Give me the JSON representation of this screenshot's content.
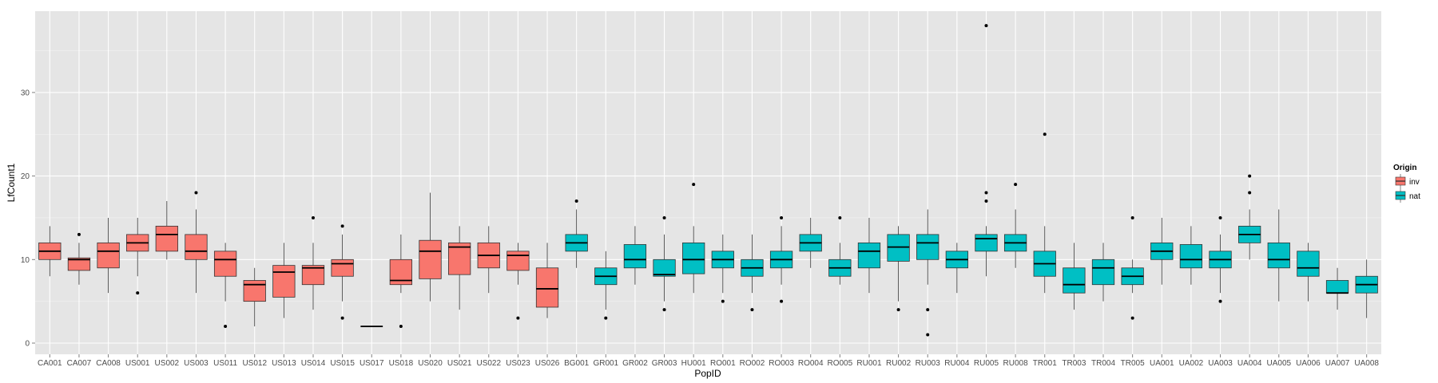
{
  "chart_data": {
    "type": "box",
    "xlabel": "PopID",
    "ylabel": "LfCount1",
    "ylim": [
      0,
      40
    ],
    "yticks": [
      0,
      10,
      20,
      30
    ],
    "grid": true,
    "legend": {
      "title": "Origin",
      "placement": "right",
      "entries": [
        {
          "key": "inv",
          "label": "inv",
          "color": "#F8766D"
        },
        {
          "key": "nat",
          "label": "nat",
          "color": "#00BFC4"
        }
      ]
    },
    "boxes": [
      {
        "category": "CA001",
        "origin": "inv",
        "q1": 10,
        "median": 11,
        "q3": 12,
        "lower_whisker": 8,
        "upper_whisker": 14,
        "outliers": []
      },
      {
        "category": "CA007",
        "origin": "inv",
        "q1": 8.7,
        "median": 10,
        "q3": 10.2,
        "lower_whisker": 7,
        "upper_whisker": 12,
        "outliers": [
          13
        ]
      },
      {
        "category": "CA008",
        "origin": "inv",
        "q1": 9,
        "median": 11,
        "q3": 12,
        "lower_whisker": 6,
        "upper_whisker": 15,
        "outliers": []
      },
      {
        "category": "US001",
        "origin": "inv",
        "q1": 11,
        "median": 12,
        "q3": 13,
        "lower_whisker": 8,
        "upper_whisker": 15,
        "outliers": [
          6
        ]
      },
      {
        "category": "US002",
        "origin": "inv",
        "q1": 11,
        "median": 13,
        "q3": 14,
        "lower_whisker": 10,
        "upper_whisker": 17,
        "outliers": []
      },
      {
        "category": "US003",
        "origin": "inv",
        "q1": 10,
        "median": 11,
        "q3": 13,
        "lower_whisker": 6,
        "upper_whisker": 16,
        "outliers": [
          18
        ]
      },
      {
        "category": "US011",
        "origin": "inv",
        "q1": 8,
        "median": 10,
        "q3": 11,
        "lower_whisker": 5,
        "upper_whisker": 12,
        "outliers": [
          2
        ]
      },
      {
        "category": "US012",
        "origin": "inv",
        "q1": 5,
        "median": 7,
        "q3": 7.5,
        "lower_whisker": 2,
        "upper_whisker": 9,
        "outliers": []
      },
      {
        "category": "US013",
        "origin": "inv",
        "q1": 5.5,
        "median": 8.5,
        "q3": 9.3,
        "lower_whisker": 3,
        "upper_whisker": 12,
        "outliers": []
      },
      {
        "category": "US014",
        "origin": "inv",
        "q1": 7,
        "median": 9,
        "q3": 9.3,
        "lower_whisker": 4,
        "upper_whisker": 12,
        "outliers": [
          15
        ]
      },
      {
        "category": "US015",
        "origin": "inv",
        "q1": 8,
        "median": 9.5,
        "q3": 10,
        "lower_whisker": 5,
        "upper_whisker": 13,
        "outliers": [
          3,
          14
        ]
      },
      {
        "category": "US017",
        "origin": "inv",
        "q1": 2,
        "median": 2,
        "q3": 2,
        "lower_whisker": 2,
        "upper_whisker": 2,
        "outliers": []
      },
      {
        "category": "US018",
        "origin": "inv",
        "q1": 7,
        "median": 7.5,
        "q3": 10,
        "lower_whisker": 6,
        "upper_whisker": 13,
        "outliers": [
          2
        ]
      },
      {
        "category": "US020",
        "origin": "inv",
        "q1": 7.7,
        "median": 11,
        "q3": 12.3,
        "lower_whisker": 5,
        "upper_whisker": 18,
        "outliers": []
      },
      {
        "category": "US021",
        "origin": "inv",
        "q1": 8.2,
        "median": 11.5,
        "q3": 12,
        "lower_whisker": 4,
        "upper_whisker": 14,
        "outliers": []
      },
      {
        "category": "US022",
        "origin": "inv",
        "q1": 9,
        "median": 10.5,
        "q3": 12,
        "lower_whisker": 6,
        "upper_whisker": 14,
        "outliers": []
      },
      {
        "category": "US023",
        "origin": "inv",
        "q1": 8.7,
        "median": 10.5,
        "q3": 11,
        "lower_whisker": 7,
        "upper_whisker": 12,
        "outliers": [
          3
        ]
      },
      {
        "category": "US026",
        "origin": "inv",
        "q1": 4.3,
        "median": 6.5,
        "q3": 9,
        "lower_whisker": 3,
        "upper_whisker": 12,
        "outliers": []
      },
      {
        "category": "BG001",
        "origin": "nat",
        "q1": 11,
        "median": 12,
        "q3": 13,
        "lower_whisker": 9,
        "upper_whisker": 16,
        "outliers": [
          17
        ]
      },
      {
        "category": "GR001",
        "origin": "nat",
        "q1": 7,
        "median": 8,
        "q3": 9,
        "lower_whisker": 4,
        "upper_whisker": 11,
        "outliers": [
          3
        ]
      },
      {
        "category": "GR002",
        "origin": "nat",
        "q1": 9,
        "median": 10,
        "q3": 11.8,
        "lower_whisker": 7,
        "upper_whisker": 14,
        "outliers": []
      },
      {
        "category": "GR003",
        "origin": "nat",
        "q1": 8,
        "median": 8.2,
        "q3": 10,
        "lower_whisker": 5,
        "upper_whisker": 13,
        "outliers": [
          4,
          15
        ]
      },
      {
        "category": "HU001",
        "origin": "nat",
        "q1": 8.3,
        "median": 10,
        "q3": 12,
        "lower_whisker": 6,
        "upper_whisker": 14,
        "outliers": [
          19
        ]
      },
      {
        "category": "RO001",
        "origin": "nat",
        "q1": 9,
        "median": 10,
        "q3": 11,
        "lower_whisker": 6,
        "upper_whisker": 13,
        "outliers": [
          5
        ]
      },
      {
        "category": "RO002",
        "origin": "nat",
        "q1": 8,
        "median": 9,
        "q3": 10,
        "lower_whisker": 6,
        "upper_whisker": 13,
        "outliers": [
          4
        ]
      },
      {
        "category": "RO003",
        "origin": "nat",
        "q1": 9,
        "median": 10,
        "q3": 11,
        "lower_whisker": 7,
        "upper_whisker": 14,
        "outliers": [
          5,
          15
        ]
      },
      {
        "category": "RO004",
        "origin": "nat",
        "q1": 11,
        "median": 12,
        "q3": 13,
        "lower_whisker": 9,
        "upper_whisker": 15,
        "outliers": []
      },
      {
        "category": "RO005",
        "origin": "nat",
        "q1": 8,
        "median": 9,
        "q3": 10,
        "lower_whisker": 7,
        "upper_whisker": 12,
        "outliers": [
          15
        ]
      },
      {
        "category": "RU001",
        "origin": "nat",
        "q1": 9,
        "median": 11,
        "q3": 12,
        "lower_whisker": 6,
        "upper_whisker": 15,
        "outliers": []
      },
      {
        "category": "RU002",
        "origin": "nat",
        "q1": 9.8,
        "median": 11.5,
        "q3": 13,
        "lower_whisker": 5,
        "upper_whisker": 14,
        "outliers": [
          4
        ]
      },
      {
        "category": "RU003",
        "origin": "nat",
        "q1": 10,
        "median": 12,
        "q3": 13,
        "lower_whisker": 7,
        "upper_whisker": 16,
        "outliers": [
          1,
          4
        ]
      },
      {
        "category": "RU004",
        "origin": "nat",
        "q1": 9,
        "median": 10,
        "q3": 11,
        "lower_whisker": 6,
        "upper_whisker": 12,
        "outliers": []
      },
      {
        "category": "RU005",
        "origin": "nat",
        "q1": 11,
        "median": 12.5,
        "q3": 13,
        "lower_whisker": 8,
        "upper_whisker": 14,
        "outliers": [
          17,
          18,
          38
        ]
      },
      {
        "category": "RU008",
        "origin": "nat",
        "q1": 11,
        "median": 12,
        "q3": 13,
        "lower_whisker": 9,
        "upper_whisker": 16,
        "outliers": [
          19
        ]
      },
      {
        "category": "TR001",
        "origin": "nat",
        "q1": 8,
        "median": 9.5,
        "q3": 11,
        "lower_whisker": 6,
        "upper_whisker": 14,
        "outliers": [
          25
        ]
      },
      {
        "category": "TR003",
        "origin": "nat",
        "q1": 6,
        "median": 7,
        "q3": 9,
        "lower_whisker": 4,
        "upper_whisker": 12,
        "outliers": []
      },
      {
        "category": "TR004",
        "origin": "nat",
        "q1": 7,
        "median": 9,
        "q3": 10,
        "lower_whisker": 5,
        "upper_whisker": 12,
        "outliers": []
      },
      {
        "category": "TR005",
        "origin": "nat",
        "q1": 7,
        "median": 8,
        "q3": 9,
        "lower_whisker": 6,
        "upper_whisker": 10,
        "outliers": [
          3,
          15
        ]
      },
      {
        "category": "UA001",
        "origin": "nat",
        "q1": 10,
        "median": 11,
        "q3": 12,
        "lower_whisker": 7,
        "upper_whisker": 15,
        "outliers": []
      },
      {
        "category": "UA002",
        "origin": "nat",
        "q1": 9,
        "median": 10,
        "q3": 11.8,
        "lower_whisker": 7,
        "upper_whisker": 14,
        "outliers": []
      },
      {
        "category": "UA003",
        "origin": "nat",
        "q1": 9,
        "median": 10,
        "q3": 11,
        "lower_whisker": 6,
        "upper_whisker": 13,
        "outliers": [
          5,
          15
        ]
      },
      {
        "category": "UA004",
        "origin": "nat",
        "q1": 12,
        "median": 13,
        "q3": 14,
        "lower_whisker": 10,
        "upper_whisker": 16,
        "outliers": [
          18,
          20
        ]
      },
      {
        "category": "UA005",
        "origin": "nat",
        "q1": 9,
        "median": 10,
        "q3": 12,
        "lower_whisker": 5,
        "upper_whisker": 16,
        "outliers": []
      },
      {
        "category": "UA006",
        "origin": "nat",
        "q1": 8,
        "median": 9,
        "q3": 11,
        "lower_whisker": 5,
        "upper_whisker": 12,
        "outliers": []
      },
      {
        "category": "UA007",
        "origin": "nat",
        "q1": 6,
        "median": 6,
        "q3": 7.5,
        "lower_whisker": 4,
        "upper_whisker": 9,
        "outliers": []
      },
      {
        "category": "UA008",
        "origin": "nat",
        "q1": 6,
        "median": 7,
        "q3": 8,
        "lower_whisker": 3,
        "upper_whisker": 10,
        "outliers": []
      }
    ]
  }
}
